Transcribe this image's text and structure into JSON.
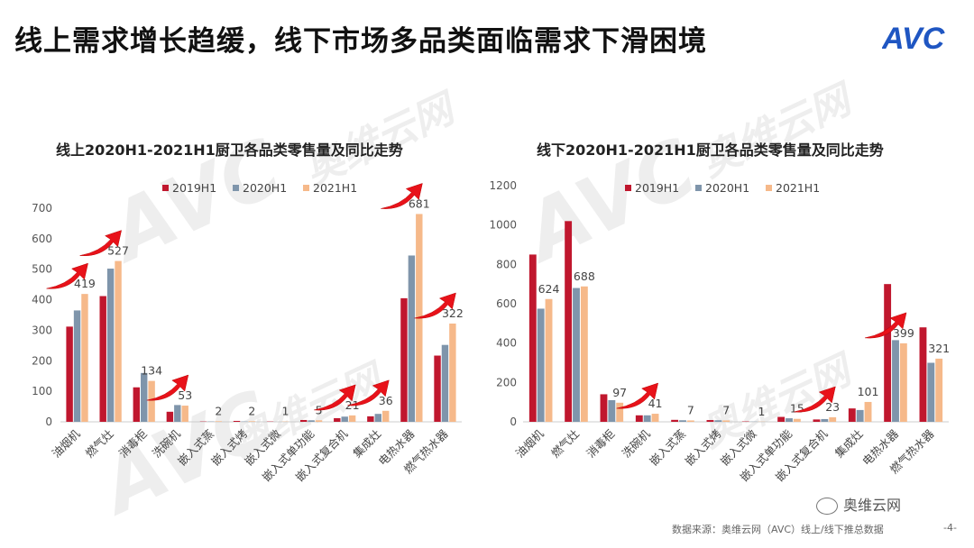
{
  "page": {
    "title": "线上需求增长趋缓，线下市场多品类面临需求下滑困境",
    "logo_text": "AVC",
    "watermark_main": "奥维云网",
    "watermark_sub": "ALL VIEW CLOUD",
    "watermark_big": "AVC",
    "wechat_label": "奥维云网",
    "source": "数据来源：奥维云网（AVC）线上/线下推总数据",
    "page_number": "-4-",
    "colors": {
      "s2019": "#c0172e",
      "s2020": "#7f95ab",
      "s2021": "#f6b98a",
      "arrow": "#e8121a"
    }
  },
  "chart_data": [
    {
      "type": "bar",
      "title": "线上2020H1-2021H1厨卫各品类零售量及同比走势",
      "categories": [
        "油烟机",
        "燃气灶",
        "消毒柜",
        "洗碗机",
        "嵌入式蒸",
        "嵌入式烤",
        "嵌入式微",
        "嵌入式单功能",
        "嵌入式复合机",
        "集成灶",
        "电热水器",
        "燃气热水器"
      ],
      "series": [
        {
          "name": "2019H1",
          "values": [
            312,
            412,
            113,
            33,
            1,
            3,
            1,
            6,
            12,
            18,
            405,
            217
          ]
        },
        {
          "name": "2020H1",
          "values": [
            365,
            502,
            160,
            55,
            1,
            1,
            0,
            5,
            17,
            26,
            545,
            252
          ]
        },
        {
          "name": "2021H1",
          "values": [
            419,
            527,
            134,
            53,
            2,
            2,
            1,
            5,
            21,
            36,
            681,
            322
          ]
        }
      ],
      "data_labels": [
        "419",
        "527",
        "134",
        "53",
        "2",
        "2",
        "1",
        "5",
        "21",
        "36",
        "681",
        "322"
      ],
      "yticks": [
        "0",
        "100",
        "200",
        "300",
        "400",
        "500",
        "600",
        "700"
      ],
      "ylim": [
        0,
        700
      ],
      "legend_position": "top",
      "arrow_categories": [
        0,
        1,
        3,
        8,
        9,
        10,
        11
      ]
    },
    {
      "type": "bar",
      "title": "线下2020H1-2021H1厨卫各品类零售量及同比走势",
      "categories": [
        "油烟机",
        "燃气灶",
        "消毒柜",
        "洗碗机",
        "嵌入式蒸",
        "嵌入式烤",
        "嵌入式微",
        "嵌入式单功能",
        "嵌入式复合机",
        "集成灶",
        "电热水器",
        "燃气热水器"
      ],
      "series": [
        {
          "name": "2019H1",
          "values": [
            850,
            1020,
            140,
            33,
            10,
            9,
            2,
            25,
            12,
            68,
            700,
            480
          ]
        },
        {
          "name": "2020H1",
          "values": [
            575,
            680,
            110,
            33,
            8,
            8,
            1,
            18,
            14,
            60,
            415,
            300
          ]
        },
        {
          "name": "2021H1",
          "values": [
            624,
            688,
            97,
            41,
            7,
            7,
            1,
            15,
            23,
            101,
            399,
            321
          ]
        }
      ],
      "data_labels": [
        "624",
        "688",
        "97",
        "41",
        "7",
        "7",
        "1",
        "15",
        "23",
        "101",
        "399",
        "321"
      ],
      "yticks": [
        "0",
        "200",
        "400",
        "600",
        "800",
        "1000",
        "1200"
      ],
      "ylim": [
        0,
        1200
      ],
      "legend_position": "top",
      "arrow_categories": [
        3,
        8,
        10
      ]
    }
  ]
}
